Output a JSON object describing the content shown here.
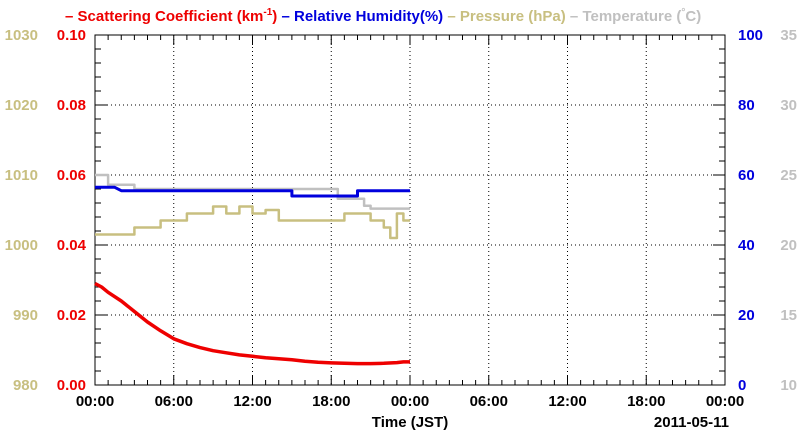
{
  "chart_data": {
    "type": "line",
    "xlabel": "Time (JST)",
    "date_label": "2011-05-11",
    "x_ticks": [
      "00:00",
      "06:00",
      "12:00",
      "18:00",
      "00:00",
      "06:00",
      "12:00",
      "18:00",
      "00:00"
    ],
    "x_range_hours": [
      0,
      48
    ],
    "legend": [
      {
        "text": "Scattering Coefficient (km",
        "sup": "-1",
        "after": ")",
        "color": "#ee0000"
      },
      {
        "text": "Relative Humidity(%)",
        "color": "#0000dd"
      },
      {
        "text": "Pressure (hPa)",
        "color": "#c8bf80"
      },
      {
        "text": "Temperature (",
        "degree": "°",
        "after": "C)",
        "color": "#c0c0c0"
      }
    ],
    "axes": {
      "pressure": {
        "side": "left-outer",
        "range": [
          980,
          1030
        ],
        "ticks": [
          "980",
          "990",
          "1000",
          "1010",
          "1020",
          "1030"
        ],
        "color": "#c8bf80"
      },
      "scattering": {
        "side": "left-inner",
        "range": [
          0.0,
          0.1
        ],
        "ticks": [
          "0.00",
          "0.02",
          "0.04",
          "0.06",
          "0.08",
          "0.10"
        ],
        "color": "#ee0000"
      },
      "humidity": {
        "side": "right-inner",
        "range": [
          0,
          100
        ],
        "ticks": [
          "0",
          "20",
          "40",
          "60",
          "80",
          "100"
        ],
        "color": "#0000dd"
      },
      "temperature": {
        "side": "right-outer",
        "range": [
          10,
          35
        ],
        "ticks": [
          "10",
          "15",
          "20",
          "25",
          "30",
          "35"
        ],
        "color": "#c0c0c0"
      }
    },
    "grid": true,
    "series": [
      {
        "name": "Scattering Coefficient",
        "axis": "scattering",
        "color": "#ee0000",
        "x": [
          0,
          0.5,
          1,
          2,
          3,
          4,
          5,
          6,
          7,
          8,
          9,
          10,
          11,
          12,
          13,
          14,
          15,
          16,
          17,
          18,
          19,
          20,
          21,
          22,
          23,
          23.5,
          24
        ],
        "y": [
          0.029,
          0.028,
          0.0265,
          0.024,
          0.021,
          0.018,
          0.0155,
          0.0132,
          0.0118,
          0.0107,
          0.0098,
          0.0092,
          0.0086,
          0.0082,
          0.0078,
          0.0075,
          0.0072,
          0.0068,
          0.0065,
          0.0063,
          0.0062,
          0.0061,
          0.0061,
          0.0062,
          0.0064,
          0.0066,
          0.0066
        ]
      },
      {
        "name": "Relative Humidity",
        "axis": "humidity",
        "color": "#0000dd",
        "x": [
          0,
          1.5,
          2,
          15,
          15,
          20,
          20,
          24
        ],
        "y": [
          56.5,
          56.5,
          55.5,
          55.5,
          54.0,
          54.0,
          55.5,
          55.5
        ]
      },
      {
        "name": "Pressure",
        "axis": "pressure",
        "color": "#c8bf80",
        "x": [
          0,
          3,
          3,
          5,
          5,
          7,
          7,
          9,
          9,
          10,
          10,
          11,
          11,
          12,
          12,
          13,
          13,
          14,
          14,
          19,
          19,
          21,
          21,
          22,
          22,
          22.5,
          22.5,
          23,
          23,
          23.5,
          23.5,
          24
        ],
        "y": [
          1001.5,
          1001.5,
          1002.5,
          1002.5,
          1003.5,
          1003.5,
          1004.5,
          1004.5,
          1005.5,
          1005.5,
          1004.5,
          1004.5,
          1005.5,
          1005.5,
          1004.5,
          1004.5,
          1005.0,
          1005.0,
          1003.5,
          1003.5,
          1004.5,
          1004.5,
          1003.5,
          1003.5,
          1002.5,
          1002.5,
          1001.0,
          1001.0,
          1004.5,
          1004.5,
          1003.5,
          1003.5
        ]
      },
      {
        "name": "Temperature",
        "axis": "temperature",
        "color": "#c0c0c0",
        "x": [
          0,
          1,
          1,
          3,
          3,
          18.5,
          18.5,
          20.5,
          20.5,
          21,
          21,
          24
        ],
        "y": [
          25.0,
          25.0,
          24.3,
          24.3,
          24.0,
          24.0,
          23.3,
          23.3,
          22.8,
          22.8,
          22.6,
          22.6
        ]
      }
    ]
  }
}
